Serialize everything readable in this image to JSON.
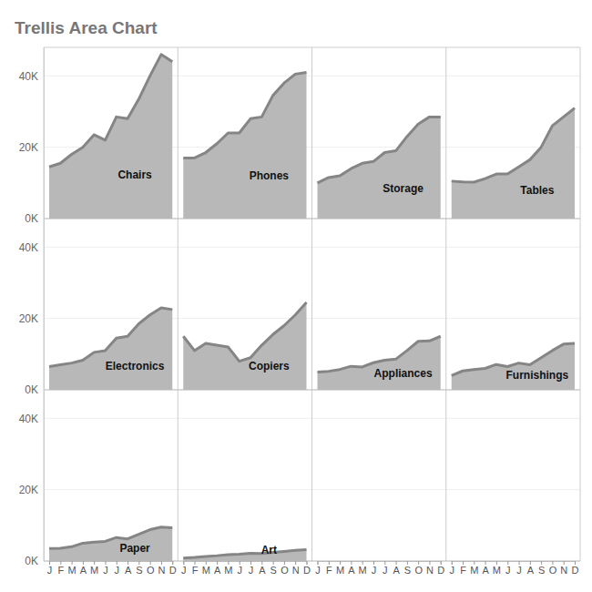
{
  "chart_data": {
    "type": "area",
    "title": "Trellis Area Chart",
    "categories": [
      "J",
      "F",
      "M",
      "A",
      "M",
      "J",
      "J",
      "A",
      "S",
      "O",
      "N",
      "D"
    ],
    "color": "#b8b8b8",
    "ylim": [
      0,
      48000
    ],
    "yticks": [
      {
        "value": 0,
        "label": "0K"
      },
      {
        "value": 20000,
        "label": "20K"
      },
      {
        "value": 40000,
        "label": "40K"
      }
    ],
    "grid": true,
    "series": [
      {
        "name": "Chairs",
        "values": [
          14500,
          15500,
          18000,
          20000,
          23500,
          22000,
          28500,
          28000,
          33500,
          40000,
          46000,
          44000
        ]
      },
      {
        "name": "Phones",
        "values": [
          17000,
          17000,
          18500,
          21000,
          24000,
          24000,
          28000,
          28500,
          34500,
          38000,
          40500,
          41000
        ]
      },
      {
        "name": "Storage",
        "values": [
          10000,
          11500,
          12000,
          14000,
          15500,
          16000,
          18500,
          19000,
          23000,
          26500,
          28500,
          28500
        ]
      },
      {
        "name": "Tables",
        "values": [
          10500,
          10300,
          10200,
          11200,
          12500,
          12500,
          14500,
          16500,
          20000,
          26000,
          28500,
          31000
        ]
      },
      {
        "name": "Electronics",
        "values": [
          6500,
          7000,
          7500,
          8300,
          10500,
          11000,
          14500,
          15000,
          18500,
          21000,
          23000,
          22500
        ]
      },
      {
        "name": "Copiers",
        "values": [
          15000,
          11000,
          13000,
          12500,
          12000,
          8000,
          9000,
          12500,
          15500,
          18000,
          21000,
          24500
        ]
      },
      {
        "name": "Appliances",
        "values": [
          5000,
          5200,
          5700,
          6600,
          6400,
          7600,
          8300,
          8600,
          11000,
          13600,
          13700,
          15000
        ]
      },
      {
        "name": "Furnishings",
        "values": [
          4000,
          5300,
          5700,
          6000,
          7100,
          6500,
          7500,
          7000,
          9000,
          11000,
          12800,
          13000
        ]
      },
      {
        "name": "Paper",
        "values": [
          3500,
          3600,
          4000,
          5000,
          5300,
          5500,
          6600,
          6200,
          7500,
          8800,
          9500,
          9300
        ]
      },
      {
        "name": "Art",
        "values": [
          800,
          1000,
          1300,
          1500,
          1800,
          1900,
          2200,
          2100,
          2400,
          2700,
          3000,
          3200
        ]
      }
    ]
  }
}
